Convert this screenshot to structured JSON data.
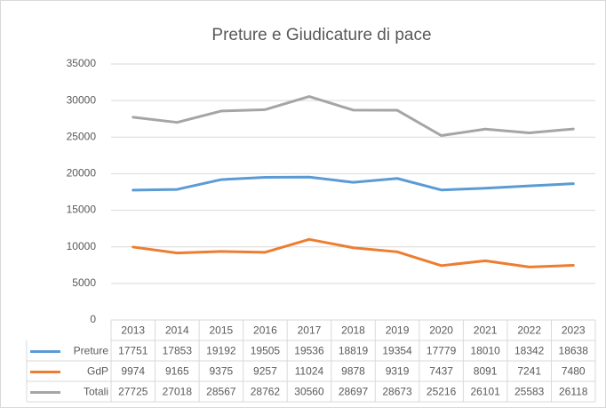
{
  "chart_data": {
    "type": "line",
    "title": "Preture e Giudicature di pace",
    "categories": [
      "2013",
      "2014",
      "2015",
      "2016",
      "2017",
      "2018",
      "2019",
      "2020",
      "2021",
      "2022",
      "2023"
    ],
    "series": [
      {
        "name": "Preture",
        "color": "#5b9bd5",
        "values": [
          17751,
          17853,
          19192,
          19505,
          19536,
          18819,
          19354,
          17779,
          18010,
          18342,
          18638
        ]
      },
      {
        "name": "GdP",
        "color": "#ed7d31",
        "values": [
          9974,
          9165,
          9375,
          9257,
          11024,
          9878,
          9319,
          7437,
          8091,
          7241,
          7480
        ]
      },
      {
        "name": "Totali",
        "color": "#a5a5a5",
        "values": [
          27725,
          27018,
          28567,
          28762,
          30560,
          28697,
          28673,
          25216,
          26101,
          25583,
          26118
        ]
      }
    ],
    "ylim": [
      0,
      35000
    ],
    "yticks": [
      0,
      5000,
      10000,
      15000,
      20000,
      25000,
      30000,
      35000
    ],
    "grid": true,
    "data_table": true
  }
}
